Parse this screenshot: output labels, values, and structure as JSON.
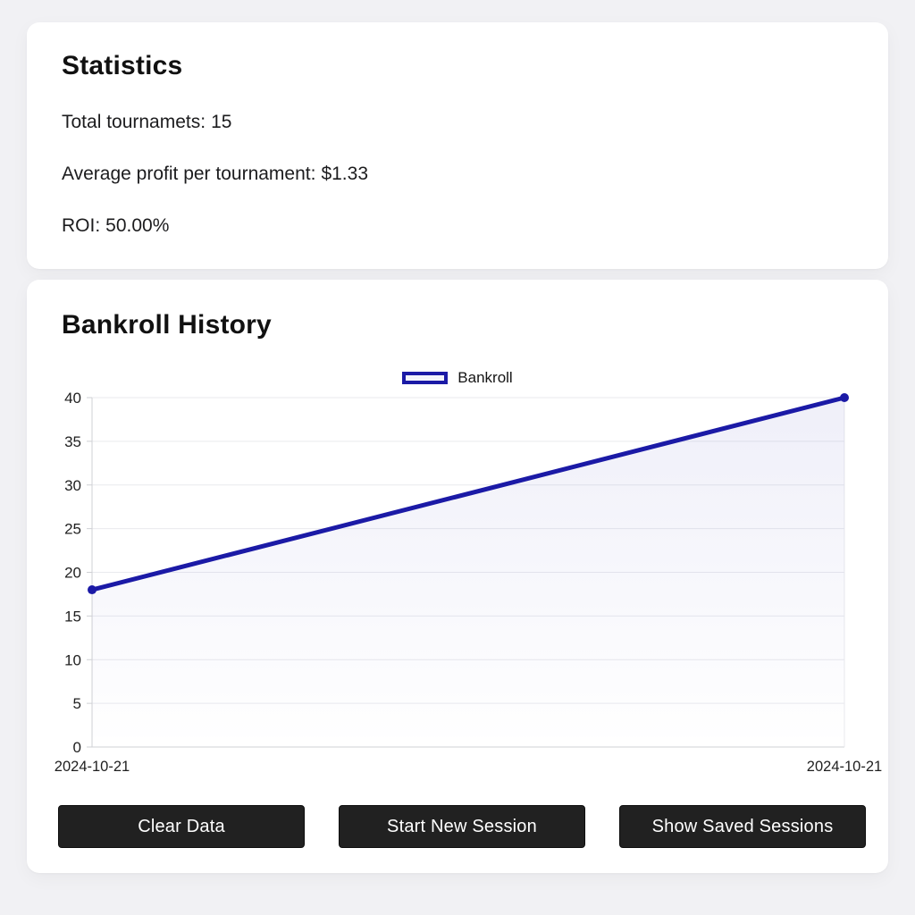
{
  "colors": {
    "page_bg": "#f1f1f4",
    "card_bg": "#ffffff",
    "accent": "#1b1aa6",
    "text": "#1f1f1f",
    "grid": "#e9eaee",
    "axis": "#cfd0d4",
    "button_bg": "#212121",
    "button_text": "#ffffff"
  },
  "stats_card": {
    "title": "Statistics",
    "items": [
      {
        "label": "Total tournamets:",
        "value": "15"
      },
      {
        "label": "Average profit per tournament:",
        "value": "$1.33"
      },
      {
        "label": "ROI:",
        "value": "50.00%"
      }
    ]
  },
  "chart_card": {
    "title": "Bankroll History",
    "legend_label": "Bankroll"
  },
  "chart_data": {
    "type": "line",
    "title": "Bankroll History",
    "x": [
      "2024-10-21",
      "2024-10-21"
    ],
    "series": [
      {
        "name": "Bankroll",
        "values": [
          18,
          40
        ],
        "color": "#1b1aa6"
      }
    ],
    "ylim": [
      0,
      40
    ],
    "yticks": [
      0,
      5,
      10,
      15,
      20,
      25,
      30,
      35,
      40
    ],
    "grid": true,
    "legend_position": "top"
  },
  "buttons": [
    {
      "label": "Clear Data"
    },
    {
      "label": "Start New Session"
    },
    {
      "label": "Show Saved Sessions"
    }
  ]
}
